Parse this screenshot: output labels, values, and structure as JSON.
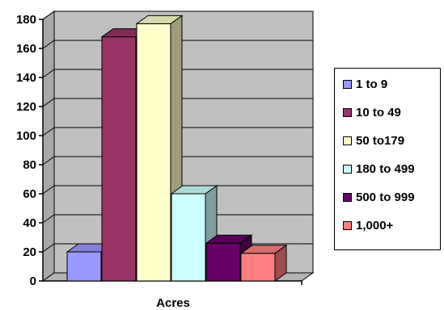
{
  "chart_data": {
    "type": "bar",
    "title": "",
    "xlabel": "Acres",
    "ylabel": "",
    "ylim": [
      0,
      180
    ],
    "yticks": [
      "0",
      "20",
      "40",
      "60",
      "80",
      "100",
      "120",
      "140",
      "160",
      "180"
    ],
    "grid": true,
    "three_d": true,
    "legend_position": "right",
    "categories": [
      "1 to 9",
      "10 to 49",
      "50 to179",
      "180 to 499",
      "500 to 999",
      "1,000+"
    ],
    "values": [
      20,
      168,
      177,
      60,
      26,
      19
    ],
    "colors": [
      "#9999FF",
      "#993366",
      "#FFFFCC",
      "#CCFFFF",
      "#660066",
      "#FF8080"
    ]
  },
  "legend": {
    "items": [
      {
        "label": "1 to 9",
        "color": "#9999FF"
      },
      {
        "label": "10 to 49",
        "color": "#993366"
      },
      {
        "label": "50 to179",
        "color": "#FFFFCC"
      },
      {
        "label": "180 to 499",
        "color": "#CCFFFF"
      },
      {
        "label": "500 to 999",
        "color": "#660066"
      },
      {
        "label": "1,000+",
        "color": "#FF8080"
      }
    ]
  },
  "colors": {
    "wall": "#C0C0C0",
    "gridline": "#000000"
  }
}
